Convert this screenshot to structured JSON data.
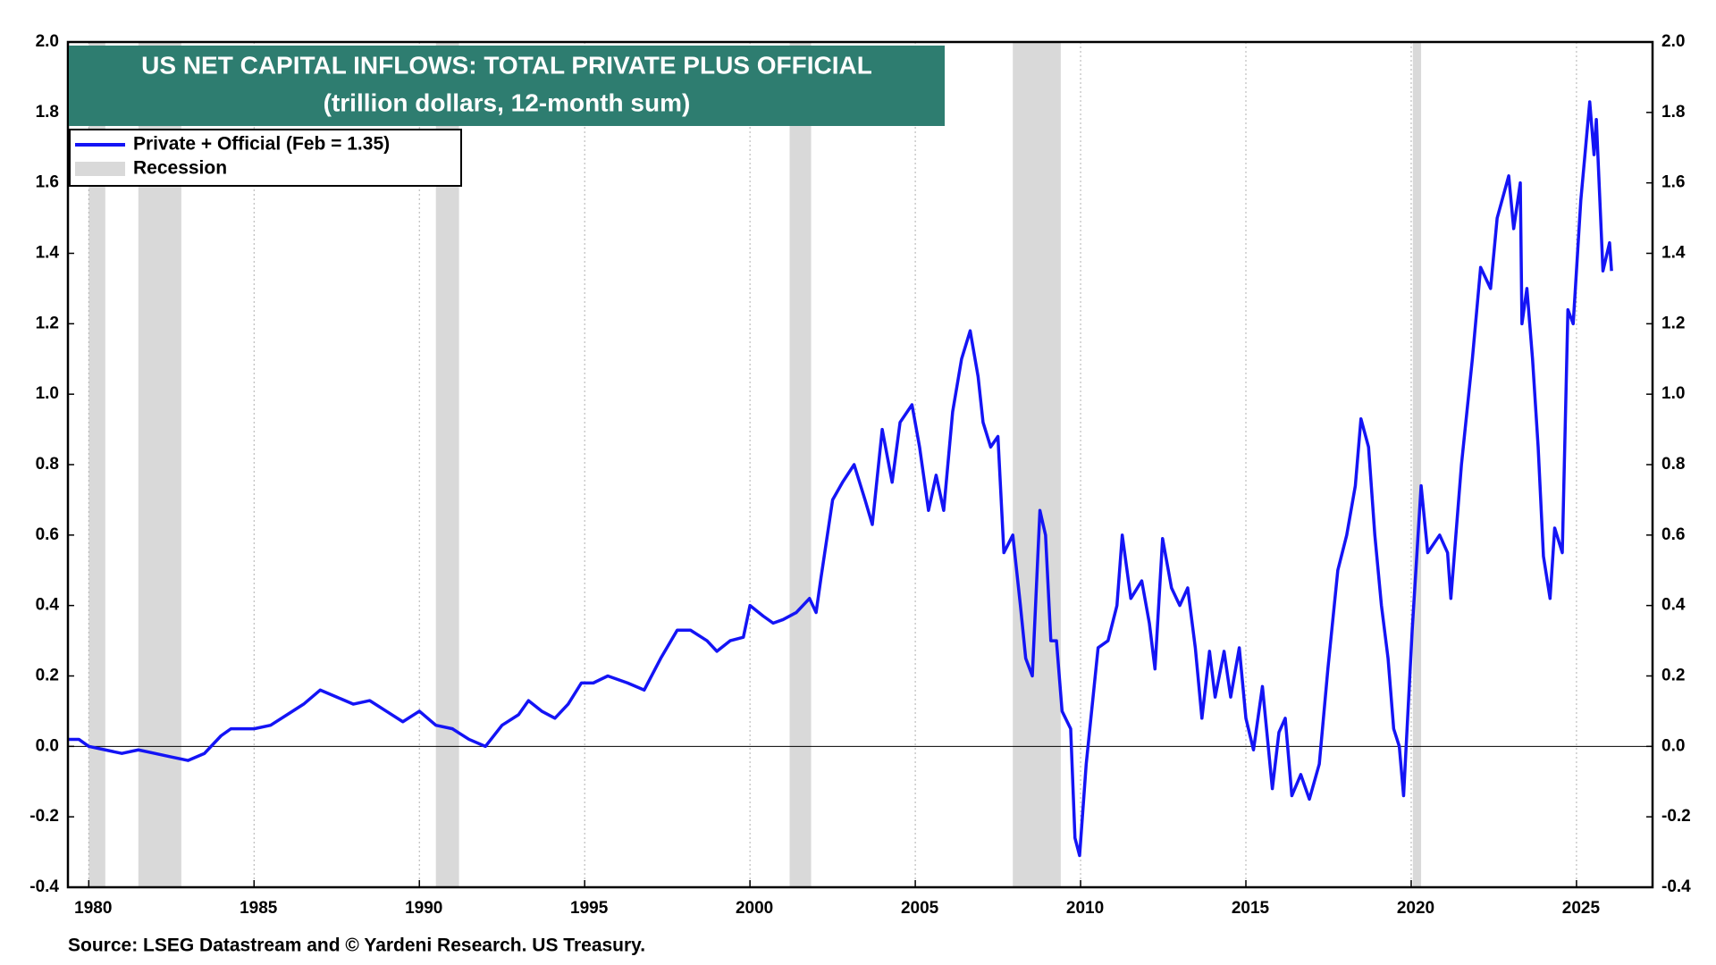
{
  "chart_data": {
    "type": "line",
    "title": "US NET CAPITAL INFLOWS: TOTAL PRIVATE PLUS OFFICIAL",
    "subtitle": "(trillion dollars, 12-month sum)",
    "source": "Source: LSEG Datastream and © Yardeni Research. US Treasury.",
    "x": [
      1979.37,
      1979.7,
      1980.0,
      1980.5,
      1981.0,
      1981.5,
      1982.0,
      1982.5,
      1983.0,
      1983.5,
      1984.0,
      1984.3,
      1985.0,
      1985.5,
      1986.0,
      1986.5,
      1987.0,
      1987.5,
      1988.0,
      1988.5,
      1989.0,
      1989.5,
      1990.0,
      1990.5,
      1991.0,
      1991.5,
      1992.0,
      1992.5,
      1993.0,
      1993.3,
      1993.7,
      1994.1,
      1994.5,
      1994.9,
      1995.26,
      1995.7,
      1996.3,
      1996.8,
      1997.3,
      1997.8,
      1998.2,
      1998.7,
      1999.0,
      1999.4,
      1999.8,
      2000.0,
      2000.4,
      2000.7,
      2001.0,
      2001.4,
      2001.8,
      2002.0,
      2002.15,
      2002.5,
      2002.8,
      2003.15,
      2003.48,
      2003.7,
      2004.0,
      2004.3,
      2004.54,
      2004.9,
      2005.13,
      2005.4,
      2005.63,
      2005.86,
      2006.13,
      2006.4,
      2006.66,
      2006.9,
      2007.05,
      2007.28,
      2007.5,
      2007.68,
      2007.95,
      2008.18,
      2008.34,
      2008.54,
      2008.77,
      2008.94,
      2009.1,
      2009.27,
      2009.44,
      2009.7,
      2009.83,
      2009.97,
      2010.17,
      2010.53,
      2010.83,
      2011.1,
      2011.26,
      2011.52,
      2011.85,
      2012.08,
      2012.25,
      2012.48,
      2012.75,
      2013.0,
      2013.24,
      2013.47,
      2013.67,
      2013.9,
      2014.07,
      2014.34,
      2014.54,
      2014.8,
      2015.0,
      2015.23,
      2015.5,
      2015.8,
      2016.0,
      2016.19,
      2016.39,
      2016.66,
      2016.92,
      2017.22,
      2017.48,
      2017.78,
      2018.05,
      2018.31,
      2018.48,
      2018.71,
      2018.9,
      2019.1,
      2019.3,
      2019.47,
      2019.64,
      2019.77,
      2020.03,
      2020.3,
      2020.5,
      2020.86,
      2021.1,
      2021.2,
      2021.52,
      2021.85,
      2022.1,
      2022.4,
      2022.6,
      2022.95,
      2023.1,
      2023.3,
      2023.35,
      2023.5,
      2023.67,
      2023.84,
      2024.0,
      2024.2,
      2024.34,
      2024.57,
      2024.74,
      2024.9,
      2025.13,
      2025.4,
      2025.53,
      2025.6,
      2025.8,
      2026.0,
      2026.06
    ],
    "series": [
      {
        "name": "Private + Official (Feb = 1.35)",
        "color": "#1414f5",
        "values": [
          0.02,
          0.02,
          0.0,
          -0.01,
          -0.02,
          -0.01,
          -0.02,
          -0.03,
          -0.04,
          -0.02,
          0.03,
          0.05,
          0.05,
          0.06,
          0.09,
          0.12,
          0.16,
          0.14,
          0.12,
          0.13,
          0.1,
          0.07,
          0.1,
          0.06,
          0.05,
          0.02,
          0.0,
          0.06,
          0.09,
          0.13,
          0.1,
          0.08,
          0.12,
          0.18,
          0.18,
          0.2,
          0.18,
          0.16,
          0.25,
          0.33,
          0.33,
          0.3,
          0.27,
          0.3,
          0.31,
          0.4,
          0.37,
          0.35,
          0.36,
          0.38,
          0.42,
          0.38,
          0.48,
          0.7,
          0.75,
          0.8,
          0.7,
          0.63,
          0.9,
          0.75,
          0.92,
          0.97,
          0.85,
          0.67,
          0.77,
          0.67,
          0.95,
          1.1,
          1.18,
          1.05,
          0.92,
          0.85,
          0.88,
          0.55,
          0.6,
          0.4,
          0.25,
          0.2,
          0.67,
          0.6,
          0.3,
          0.3,
          0.1,
          0.05,
          -0.26,
          -0.31,
          -0.05,
          0.28,
          0.3,
          0.4,
          0.6,
          0.42,
          0.47,
          0.35,
          0.22,
          0.59,
          0.45,
          0.4,
          0.45,
          0.28,
          0.08,
          0.27,
          0.14,
          0.27,
          0.14,
          0.28,
          0.08,
          -0.01,
          0.17,
          -0.12,
          0.04,
          0.08,
          -0.14,
          -0.08,
          -0.15,
          -0.05,
          0.22,
          0.5,
          0.6,
          0.74,
          0.93,
          0.85,
          0.6,
          0.4,
          0.25,
          0.05,
          0.0,
          -0.14,
          0.33,
          0.74,
          0.55,
          0.6,
          0.55,
          0.42,
          0.8,
          1.1,
          1.36,
          1.3,
          1.5,
          1.62,
          1.47,
          1.6,
          1.2,
          1.3,
          1.1,
          0.85,
          0.54,
          0.42,
          0.62,
          0.55,
          1.24,
          1.2,
          1.55,
          1.83,
          1.68,
          1.78,
          1.35,
          1.43,
          1.35
        ]
      }
    ],
    "recession_label": "Recession",
    "recession_color": "#d9d9d9",
    "recessions": [
      [
        1980.0,
        1980.5
      ],
      [
        1981.5,
        1982.8
      ],
      [
        1990.5,
        1991.2
      ],
      [
        2001.2,
        2001.85
      ],
      [
        2007.95,
        2009.4
      ],
      [
        2020.05,
        2020.3
      ]
    ],
    "xlim": [
      1979.37,
      2027.3
    ],
    "xticks": [
      1980,
      1985,
      1990,
      1995,
      2000,
      2005,
      2010,
      2015,
      2020,
      2025
    ],
    "ylim": [
      -0.4,
      2.0
    ],
    "yticks": [
      {
        "value": -0.4,
        "label": "-0.4"
      },
      {
        "value": -0.2,
        "label": "-0.2"
      },
      {
        "value": 0,
        "label": "0.0"
      },
      {
        "value": 0.2,
        "label": "0.2"
      },
      {
        "value": 0.4,
        "label": "0.4"
      },
      {
        "value": 0.6,
        "label": "0.6"
      },
      {
        "value": 0.8,
        "label": "0.8"
      },
      {
        "value": 1.0,
        "label": "1.0"
      },
      {
        "value": 1.2,
        "label": "1.2"
      },
      {
        "value": 1.4,
        "label": "1.4"
      },
      {
        "value": 1.6,
        "label": "1.6"
      },
      {
        "value": 1.8,
        "label": "1.8"
      },
      {
        "value": 2.0,
        "label": "2.0"
      }
    ],
    "grid": "x",
    "title_color": "#2e7d70",
    "legend": "upper left"
  }
}
